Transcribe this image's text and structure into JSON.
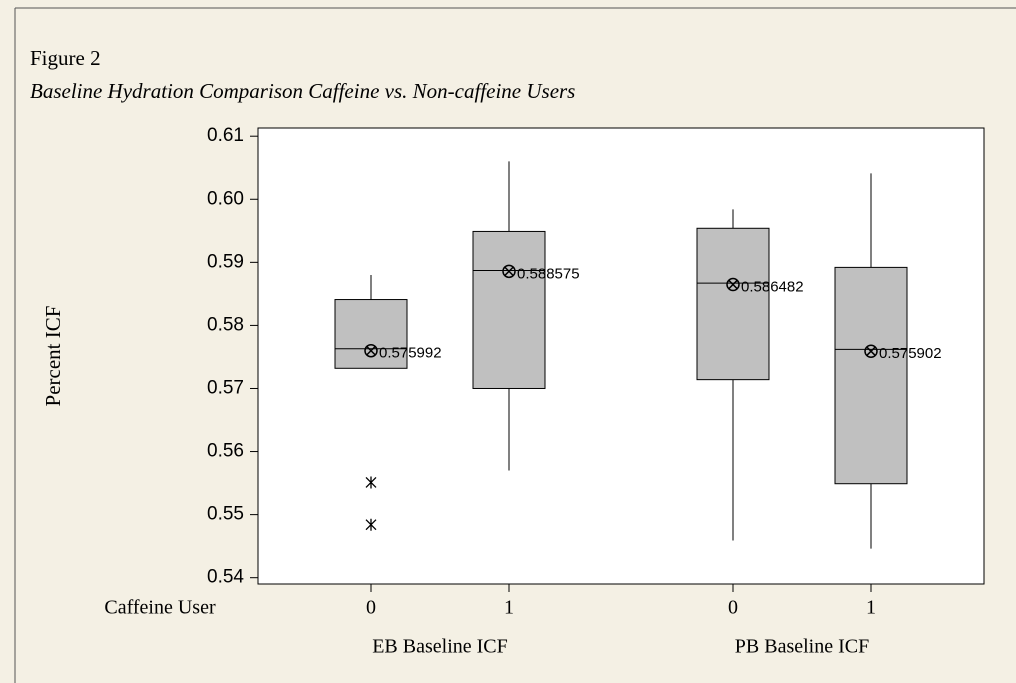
{
  "chart_data": {
    "type": "box",
    "title": "Figure 2",
    "subtitle": "Baseline Hydration Comparison Caffeine vs. Non-caffeine Users",
    "ylabel": "Percent ICF",
    "x_label": "Caffeine User",
    "categories": [
      "0",
      "1",
      "0",
      "1"
    ],
    "groups": [
      "EB Baseline ICF",
      "PB Baseline ICF"
    ],
    "color": "#c0c0c0",
    "ylim": [
      0.539,
      0.6113
    ],
    "yticks": [
      0.54,
      0.55,
      0.56,
      0.57,
      0.58,
      0.59,
      {
        "value": 0.6,
        "label": "0.60"
      },
      0.61
    ],
    "boxes": [
      {
        "whisker_low": 0.5732,
        "q1": 0.5732,
        "median": 0.5763,
        "q3": 0.5841,
        "whisker_high": 0.588,
        "mean": 0.575992,
        "outliers": [
          0.5551,
          0.5484
        ]
      },
      {
        "whisker_low": 0.557,
        "q1": 0.57,
        "median": 0.5887,
        "q3": 0.5949,
        "whisker_high": 0.606,
        "mean": 0.588575,
        "outliers": []
      },
      {
        "whisker_low": 0.5459,
        "q1": 0.5714,
        "median": 0.5867,
        "q3": 0.5954,
        "whisker_high": 0.5984,
        "mean": 0.586482,
        "outliers": []
      },
      {
        "whisker_low": 0.5446,
        "q1": 0.5549,
        "median": 0.5762,
        "q3": 0.5892,
        "whisker_high": 0.6041,
        "mean": 0.575902,
        "outliers": []
      }
    ]
  }
}
